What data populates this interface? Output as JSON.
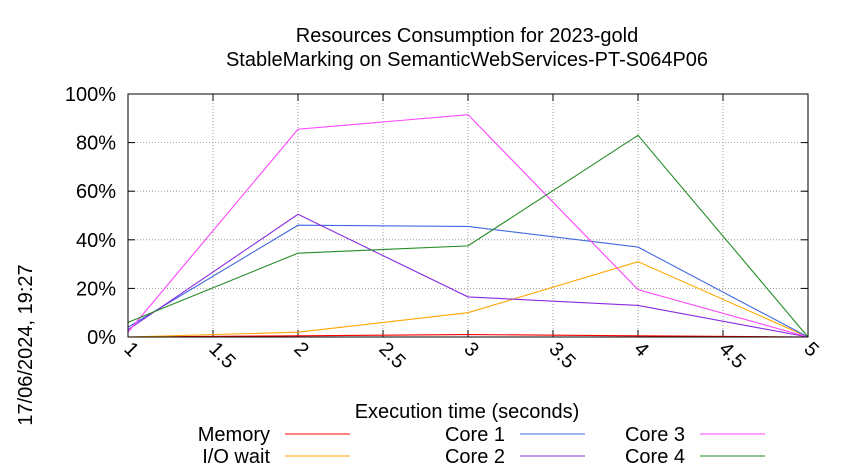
{
  "timestamp": "17/06/2024, 19:27",
  "chart_data": {
    "type": "line",
    "title_line1": "Resources Consumption for 2023-gold",
    "title_line2": "StableMarking on SemanticWebServices-PT-S064P06",
    "xlabel": "Execution time (seconds)",
    "ylabel": "",
    "xlim": [
      1,
      5
    ],
    "ylim": [
      0,
      100
    ],
    "x_ticks": [
      "1",
      "1.5",
      "2",
      "2.5",
      "3",
      "3.5",
      "4",
      "4.5",
      "5"
    ],
    "y_ticks": [
      "0%",
      "20%",
      "40%",
      "60%",
      "80%",
      "100%"
    ],
    "grid": true,
    "legend_position": "bottom",
    "x": [
      1,
      2,
      3,
      4,
      5
    ],
    "series": [
      {
        "name": "Memory",
        "color": "#ff0000",
        "values": [
          0,
          0.5,
          1,
          0.5,
          0
        ]
      },
      {
        "name": "I/O wait",
        "color": "#ffa500",
        "values": [
          0,
          2,
          10,
          31,
          0
        ]
      },
      {
        "name": "Core 1",
        "color": "#4169e1",
        "values": [
          4,
          46,
          45.5,
          37,
          0
        ]
      },
      {
        "name": "Core 2",
        "color": "#8a2be2",
        "values": [
          3,
          50.5,
          16.5,
          13,
          0
        ]
      },
      {
        "name": "Core 3",
        "color": "#ff44ff",
        "values": [
          2,
          85.5,
          91.5,
          19.5,
          0
        ]
      },
      {
        "name": "Core 4",
        "color": "#228b22",
        "values": [
          6,
          34.5,
          37.5,
          83,
          0
        ]
      }
    ]
  }
}
